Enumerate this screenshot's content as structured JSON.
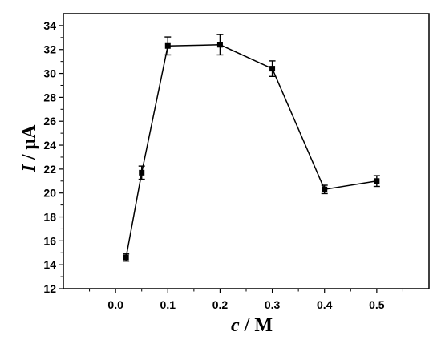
{
  "chart_data": {
    "type": "line",
    "xlabel": {
      "var": "c",
      "unit": " / M"
    },
    "ylabel": {
      "var": "I",
      "unit": " / μA"
    },
    "xlim": [
      -0.1,
      0.6
    ],
    "ylim": [
      12,
      35
    ],
    "xticks": [
      0.0,
      0.1,
      0.2,
      0.3,
      0.4,
      0.5
    ],
    "xtick_labels": [
      "0.0",
      "0.1",
      "0.2",
      "0.3",
      "0.4",
      "0.5"
    ],
    "xminor": [
      -0.05,
      0.05,
      0.15,
      0.25,
      0.35,
      0.45,
      0.55
    ],
    "yticks": [
      12,
      14,
      16,
      18,
      20,
      22,
      24,
      26,
      28,
      30,
      32,
      34
    ],
    "ytick_labels": [
      "12",
      "14",
      "16",
      "18",
      "20",
      "22",
      "24",
      "26",
      "28",
      "30",
      "32",
      "34"
    ],
    "yminor": [
      13,
      15,
      17,
      19,
      21,
      23,
      25,
      27,
      29,
      31,
      33
    ],
    "grid": false,
    "series": [
      {
        "marker": "square",
        "color": "#000000",
        "x": [
          0.02,
          0.05,
          0.1,
          0.2,
          0.3,
          0.4,
          0.5
        ],
        "y": [
          14.6,
          21.7,
          32.3,
          32.4,
          30.4,
          20.3,
          21.0
        ],
        "err": [
          0.3,
          0.55,
          0.75,
          0.85,
          0.65,
          0.35,
          0.45
        ]
      }
    ]
  }
}
